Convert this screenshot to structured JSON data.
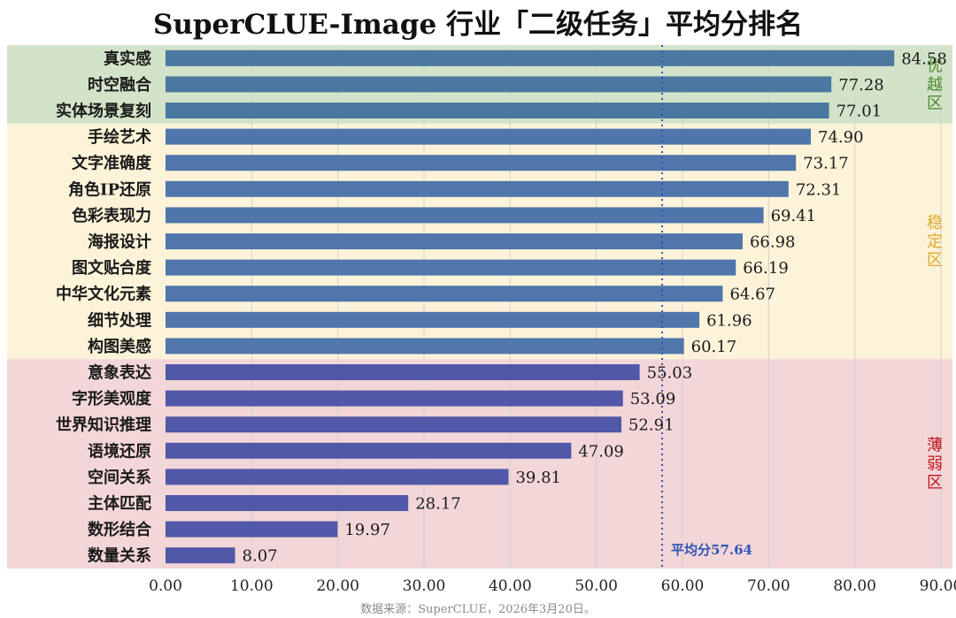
{
  "chart_data": {
    "type": "bar",
    "orientation": "horizontal",
    "title": "SuperCLUE-Image 行业「二级任务」平均分排名",
    "categories": [
      "真实感",
      "时空融合",
      "实体场景复刻",
      "手绘艺术",
      "文字准确度",
      "角色IP还原",
      "色彩表现力",
      "海报设计",
      "图文贴合度",
      "中华文化元素",
      "细节处理",
      "构图美感",
      "意象表达",
      "字形美观度",
      "世界知识推理",
      "语境还原",
      "空间关系",
      "主体匹配",
      "数形结合",
      "数量关系"
    ],
    "values": [
      84.58,
      77.28,
      77.01,
      74.9,
      73.17,
      72.31,
      69.41,
      66.98,
      66.19,
      64.67,
      61.96,
      60.17,
      55.03,
      53.09,
      52.91,
      47.09,
      39.81,
      28.17,
      19.97,
      8.07
    ],
    "value_labels": [
      "84.58",
      "77.28",
      "77.01",
      "74.90",
      "73.17",
      "72.31",
      "69.41",
      "66.98",
      "66.19",
      "64.67",
      "61.96",
      "60.17",
      "55.03",
      "53.09",
      "52.91",
      "47.09",
      "39.81",
      "28.17",
      "19.97",
      "8.07"
    ],
    "xlim": [
      0,
      90
    ],
    "xticks": [
      "0.00",
      "10.00",
      "20.00",
      "30.00",
      "40.00",
      "50.00",
      "60.00",
      "70.00",
      "80.00",
      "90.00"
    ],
    "grid": "vertical",
    "reference_line": {
      "value": 57.64,
      "label": "平均分57.64",
      "color": "#2f55b5"
    },
    "zones": [
      {
        "label": "优越区",
        "from": 0,
        "to": 2,
        "background": "#d3e3c9",
        "label_color": "#4e8a2e",
        "bar_color": "#4a78a0"
      },
      {
        "label": "稳定区",
        "from": 3,
        "to": 11,
        "background": "#fdf3d9",
        "label_color": "#e0a92a",
        "bar_color": "#5076ab"
      },
      {
        "label": "薄弱区",
        "from": 12,
        "to": 19,
        "background": "#f3d6d7",
        "label_color": "#c0121a",
        "bar_color": "#5258a8"
      }
    ],
    "source": "数据来源：SuperCLUE，2026年3月20日。"
  }
}
